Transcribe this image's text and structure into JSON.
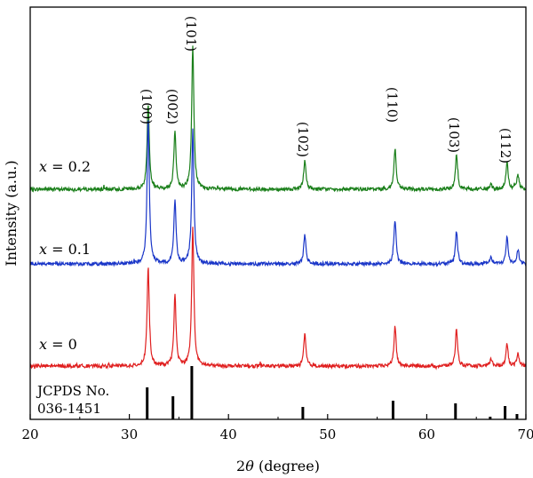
{
  "chart_data": {
    "type": "line",
    "title": "",
    "xlabel_prefix": "2",
    "xlabel_theta": "θ",
    "xlabel_suffix": " (degree)",
    "ylabel": "Intensity (a.u.)",
    "xlim": [
      20,
      70
    ],
    "x_ticks": [
      20,
      30,
      40,
      50,
      60,
      70
    ],
    "y_ticks_shown": false,
    "grid": false,
    "legend": "none",
    "peak_labels": [
      {
        "text": "(100)",
        "x": 32.0
      },
      {
        "text": "(002)",
        "x": 34.6
      },
      {
        "text": "(101)",
        "x": 36.5
      },
      {
        "text": "(102)",
        "x": 47.8
      },
      {
        "text": "(110)",
        "x": 56.8
      },
      {
        "text": "(103)",
        "x": 63.0
      },
      {
        "text": "(112)",
        "x": 68.2
      }
    ],
    "series": [
      {
        "name_var": "x",
        "name_rest": " = 0.2",
        "color": "#1a7f1a",
        "peaks": [
          {
            "x": 31.9,
            "h": 97
          },
          {
            "x": 34.6,
            "h": 66
          },
          {
            "x": 36.4,
            "h": 162
          },
          {
            "x": 47.7,
            "h": 33
          },
          {
            "x": 56.8,
            "h": 46
          },
          {
            "x": 63.0,
            "h": 40
          },
          {
            "x": 66.5,
            "h": 5
          },
          {
            "x": 68.1,
            "h": 30
          },
          {
            "x": 69.2,
            "h": 16
          }
        ]
      },
      {
        "name_var": "x",
        "name_rest": " = 0.1",
        "color": "#1a36c8",
        "peaks": [
          {
            "x": 31.9,
            "h": 165
          },
          {
            "x": 34.6,
            "h": 72
          },
          {
            "x": 36.4,
            "h": 150
          },
          {
            "x": 47.7,
            "h": 33
          },
          {
            "x": 56.8,
            "h": 50
          },
          {
            "x": 63.0,
            "h": 37
          },
          {
            "x": 66.5,
            "h": 7
          },
          {
            "x": 68.1,
            "h": 30
          },
          {
            "x": 69.2,
            "h": 16
          }
        ]
      },
      {
        "name_var": "x",
        "name_rest": " = 0",
        "color": "#e01f1f",
        "peaks": [
          {
            "x": 31.9,
            "h": 112
          },
          {
            "x": 34.6,
            "h": 80
          },
          {
            "x": 36.4,
            "h": 157
          },
          {
            "x": 47.7,
            "h": 36
          },
          {
            "x": 56.8,
            "h": 45
          },
          {
            "x": 63.0,
            "h": 42
          },
          {
            "x": 66.5,
            "h": 8
          },
          {
            "x": 68.1,
            "h": 25
          },
          {
            "x": 69.2,
            "h": 14
          }
        ]
      }
    ],
    "reference": {
      "label_line1": "JCPDS No.",
      "label_line2": "036-1451",
      "sticks": [
        {
          "x": 31.8,
          "h": 36
        },
        {
          "x": 34.4,
          "h": 26
        },
        {
          "x": 36.3,
          "h": 60
        },
        {
          "x": 47.5,
          "h": 14
        },
        {
          "x": 56.6,
          "h": 21
        },
        {
          "x": 62.9,
          "h": 18
        },
        {
          "x": 66.4,
          "h": 3
        },
        {
          "x": 67.9,
          "h": 15
        },
        {
          "x": 69.1,
          "h": 6
        }
      ]
    }
  }
}
